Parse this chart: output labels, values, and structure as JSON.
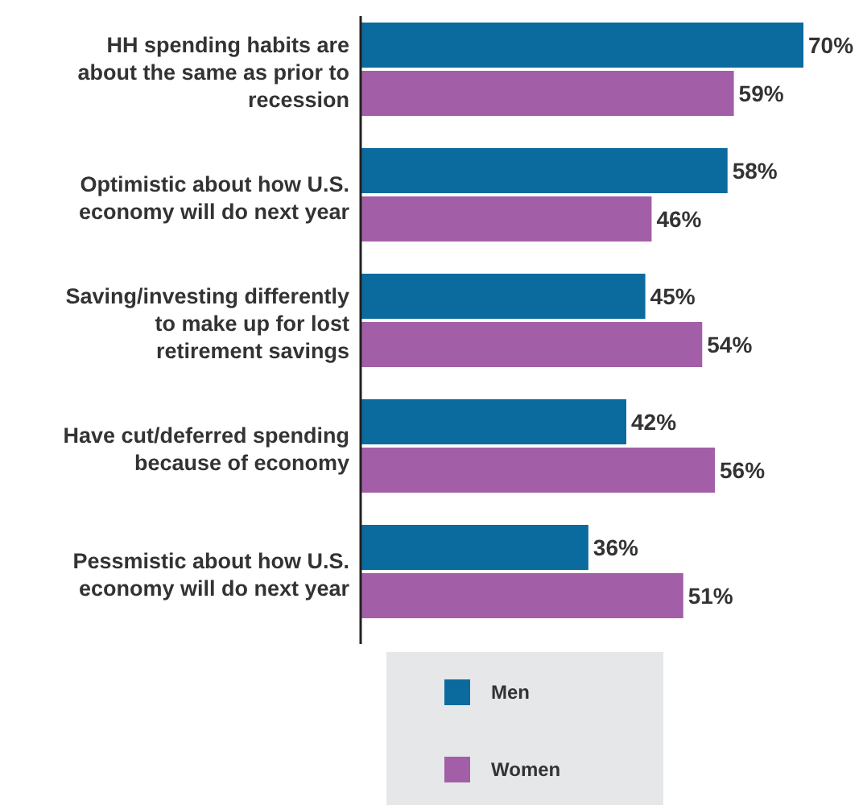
{
  "chart_data": {
    "type": "bar",
    "orientation": "horizontal",
    "legend": "bottom",
    "categories": [
      "HH spending habits are about the same as prior to recession",
      "Optimistic about how U.S. economy will do next year",
      "Saving/investing differently to make up for lost retirement savings",
      "Have cut/deferred spending because of economy",
      "Pessmistic about how U.S. economy will do next year"
    ],
    "series": [
      {
        "name": "Men",
        "color": "#0b6a9e",
        "values": [
          70,
          58,
          45,
          42,
          36
        ],
        "value_labels": [
          "70%",
          "58%",
          "45%",
          "42%",
          "36%"
        ]
      },
      {
        "name": "Women",
        "color": "#a35ea8",
        "values": [
          59,
          46,
          54,
          56,
          51
        ],
        "value_labels": [
          "59%",
          "46%",
          "54%",
          "56%",
          "51%"
        ]
      }
    ]
  }
}
